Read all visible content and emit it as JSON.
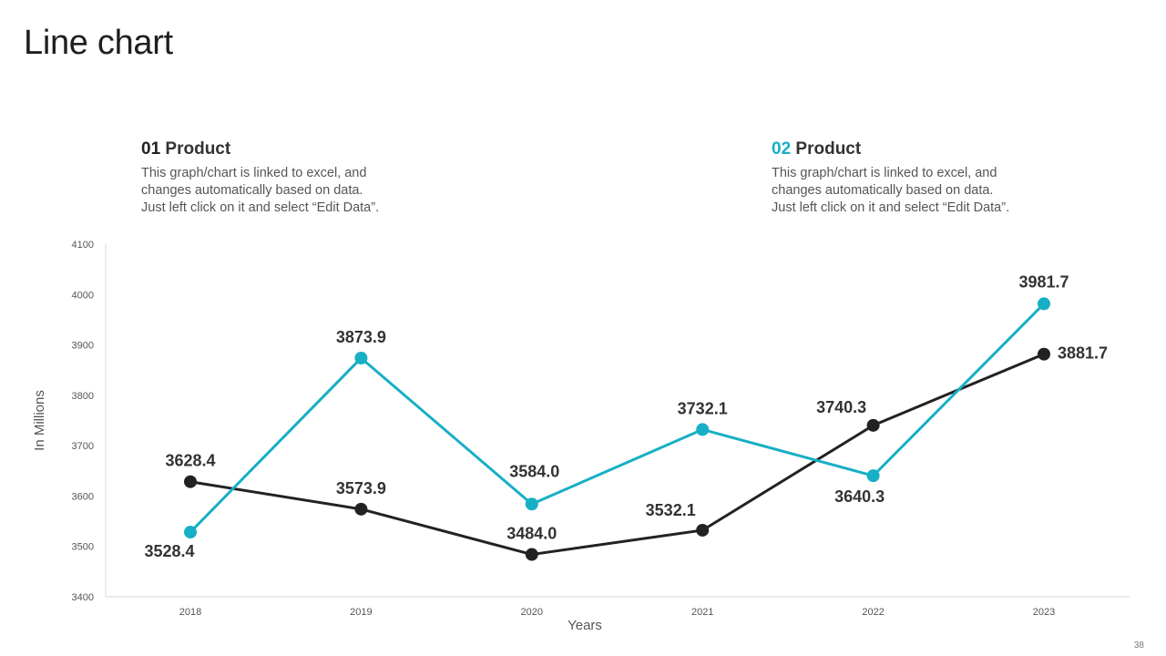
{
  "slide": {
    "title": "Line chart",
    "page_number": "38"
  },
  "legend": [
    {
      "number": "01",
      "label": "Product",
      "color": "#222222",
      "desc": [
        "This graph/chart is linked to excel, and",
        "changes automatically based on data.",
        "Just left click on it and select “Edit Data”."
      ]
    },
    {
      "number": "02",
      "label": "Product",
      "color": "#17afc5",
      "desc": [
        "This graph/chart is linked to excel, and",
        "changes automatically based on data.",
        "Just left click on it and select “Edit Data”."
      ]
    }
  ],
  "chart_data": {
    "type": "line",
    "title": "",
    "xlabel": "Years",
    "ylabel": "In Millions",
    "x": [
      "2018",
      "2019",
      "2020",
      "2021",
      "2022",
      "2023"
    ],
    "ylim": [
      3400,
      4100
    ],
    "yticks": [
      3400,
      3500,
      3600,
      3700,
      3800,
      3900,
      4000,
      4100
    ],
    "grid": false,
    "series": [
      {
        "name": "01 Product",
        "color": "#222222",
        "values": [
          3628.4,
          3573.9,
          3484.0,
          3532.1,
          3740.3,
          3881.7
        ],
        "labels": [
          "3628.4",
          "3573.9",
          "3484.0",
          "3532.1",
          "3740.3",
          "3881.7"
        ]
      },
      {
        "name": "02 Product",
        "color": "#17afc5",
        "values": [
          3528.4,
          3873.9,
          3584.0,
          3732.1,
          3640.3,
          3981.7
        ],
        "labels": [
          "3528.4",
          "3873.9",
          "3584.0",
          "3732.1",
          "3640.3",
          "3981.7"
        ]
      }
    ]
  }
}
